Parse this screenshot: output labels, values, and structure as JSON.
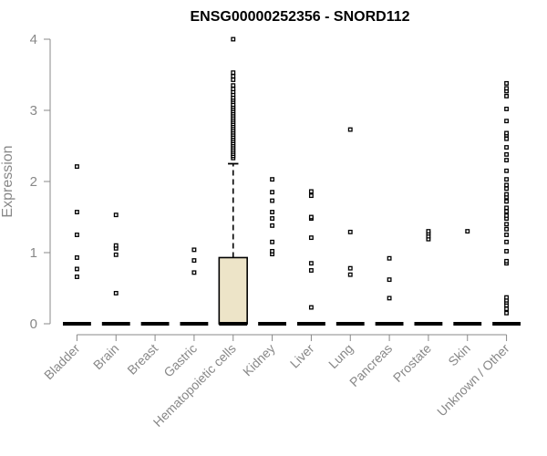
{
  "chart_data": {
    "type": "box",
    "title": "ENSG00000252356 - SNORD112",
    "ylabel": "Expression",
    "xlabel": "",
    "ylim": [
      0,
      4
    ],
    "yticks": [
      0,
      1,
      2,
      3,
      4
    ],
    "categories": [
      "Bladder",
      "Brain",
      "Breast",
      "Gastric",
      "Hematopoietic cells",
      "Kidney",
      "Liver",
      "Lung",
      "Pancreas",
      "Prostate",
      "Skin",
      "Unknown / Other"
    ],
    "boxes": [
      {
        "category": "Bladder",
        "min": 0,
        "q1": 0,
        "median": 0,
        "q3": 0,
        "max": 0,
        "outliers": [
          0.66,
          0.77,
          0.93,
          1.25,
          1.57,
          2.21
        ]
      },
      {
        "category": "Brain",
        "min": 0,
        "q1": 0,
        "median": 0,
        "q3": 0,
        "max": 0,
        "outliers": [
          0.43,
          0.97,
          1.06,
          1.1,
          1.53
        ]
      },
      {
        "category": "Breast",
        "min": 0,
        "q1": 0,
        "median": 0,
        "q3": 0,
        "max": 0,
        "outliers": []
      },
      {
        "category": "Gastric",
        "min": 0,
        "q1": 0,
        "median": 0,
        "q3": 0,
        "max": 0,
        "outliers": [
          0.72,
          0.89,
          1.04
        ]
      },
      {
        "category": "Hematopoietic cells",
        "min": 0,
        "q1": 0,
        "median": 0,
        "q3": 0.93,
        "max": 2.25,
        "outliers": [
          2.33,
          2.36,
          2.39,
          2.42,
          2.45,
          2.48,
          2.51,
          2.54,
          2.57,
          2.6,
          2.63,
          2.66,
          2.69,
          2.72,
          2.75,
          2.78,
          2.81,
          2.84,
          2.87,
          2.9,
          2.93,
          2.96,
          2.99,
          3.02,
          3.05,
          3.08,
          3.12,
          3.15,
          3.18,
          3.22,
          3.26,
          3.3,
          3.35,
          3.43,
          3.48,
          3.53,
          4.0
        ]
      },
      {
        "category": "Kidney",
        "min": 0,
        "q1": 0,
        "median": 0,
        "q3": 0,
        "max": 0,
        "outliers": [
          0.98,
          1.02,
          1.15,
          1.38,
          1.48,
          1.57,
          1.73,
          1.85,
          2.03
        ]
      },
      {
        "category": "Liver",
        "min": 0,
        "q1": 0,
        "median": 0,
        "q3": 0,
        "max": 0,
        "outliers": [
          0.23,
          0.75,
          0.85,
          1.21,
          1.48,
          1.5,
          1.8,
          1.86
        ]
      },
      {
        "category": "Lung",
        "min": 0,
        "q1": 0,
        "median": 0,
        "q3": 0,
        "max": 0,
        "outliers": [
          0.69,
          0.78,
          1.29,
          2.73
        ]
      },
      {
        "category": "Pancreas",
        "min": 0,
        "q1": 0,
        "median": 0,
        "q3": 0,
        "max": 0,
        "outliers": [
          0.36,
          0.62,
          0.92
        ]
      },
      {
        "category": "Prostate",
        "min": 0,
        "q1": 0,
        "median": 0,
        "q3": 0,
        "max": 0,
        "outliers": [
          1.19,
          1.23,
          1.27,
          1.3
        ]
      },
      {
        "category": "Skin",
        "min": 0,
        "q1": 0,
        "median": 0,
        "q3": 0,
        "max": 0,
        "outliers": [
          1.3
        ]
      },
      {
        "category": "Unknown / Other",
        "min": 0,
        "q1": 0,
        "median": 0,
        "q3": 0,
        "max": 0,
        "outliers": [
          0.15,
          0.21,
          0.26,
          0.3,
          0.33,
          0.37,
          0.85,
          0.88,
          1.02,
          1.15,
          1.25,
          1.33,
          1.4,
          1.48,
          1.52,
          1.58,
          1.63,
          1.72,
          1.78,
          1.82,
          1.9,
          1.95,
          2.03,
          2.15,
          2.3,
          2.38,
          2.48,
          2.6,
          2.65,
          2.68,
          2.85,
          3.02,
          3.2,
          3.27,
          3.31,
          3.38
        ]
      }
    ],
    "colors": {
      "box_fill": "#ede4c8",
      "box_stroke": "#000000",
      "axis": "#888888",
      "title": "#000000"
    }
  }
}
